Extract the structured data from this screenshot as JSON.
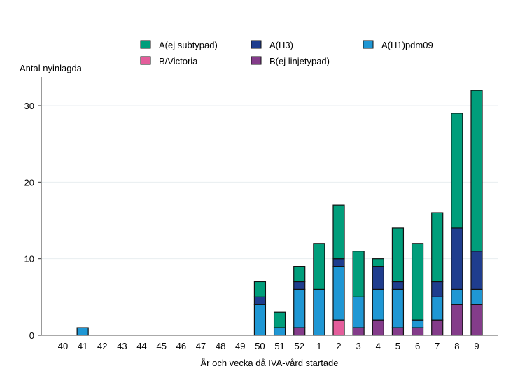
{
  "chart_data": {
    "type": "bar",
    "stacked": true,
    "xlabel": "År och vecka då IVA-vård startade",
    "ylabel": "Antal nyinlagda",
    "ylim": [
      0,
      33
    ],
    "yticks": [
      0,
      10,
      20,
      30
    ],
    "grid": true,
    "legend_position": "top",
    "categories": [
      "40",
      "41",
      "42",
      "43",
      "44",
      "45",
      "46",
      "47",
      "48",
      "49",
      "50",
      "51",
      "52",
      "1",
      "2",
      "3",
      "4",
      "5",
      "6",
      "7",
      "8",
      "9"
    ],
    "series": [
      {
        "name": "B(ej linjetypad)",
        "color": "#843c8a",
        "values": [
          0,
          0,
          0,
          0,
          0,
          0,
          0,
          0,
          0,
          0,
          0,
          0,
          1,
          0,
          0,
          1,
          2,
          1,
          1,
          2,
          4,
          4
        ]
      },
      {
        "name": "B/Victoria",
        "color": "#e45d9b",
        "values": [
          0,
          0,
          0,
          0,
          0,
          0,
          0,
          0,
          0,
          0,
          0,
          0,
          0,
          0,
          2,
          0,
          0,
          0,
          0,
          0,
          0,
          0
        ]
      },
      {
        "name": "A(H1)pdm09",
        "color": "#1f97d4",
        "values": [
          0,
          1,
          0,
          0,
          0,
          0,
          0,
          0,
          0,
          0,
          4,
          1,
          5,
          6,
          7,
          4,
          4,
          5,
          1,
          3,
          2,
          2
        ]
      },
      {
        "name": "A(H3)",
        "color": "#1f3d8e",
        "values": [
          0,
          0,
          0,
          0,
          0,
          0,
          0,
          0,
          0,
          0,
          1,
          0,
          1,
          0,
          1,
          0,
          3,
          1,
          0,
          2,
          8,
          5
        ]
      },
      {
        "name": "A(ej subtypad)",
        "color": "#009e7b",
        "values": [
          0,
          0,
          0,
          0,
          0,
          0,
          0,
          0,
          0,
          0,
          2,
          2,
          2,
          6,
          7,
          6,
          1,
          7,
          10,
          9,
          15,
          21
        ]
      }
    ],
    "legend_order": [
      "A(ej subtypad)",
      "A(H3)",
      "A(H1)pdm09",
      "B/Victoria",
      "B(ej linjetypad)"
    ]
  }
}
